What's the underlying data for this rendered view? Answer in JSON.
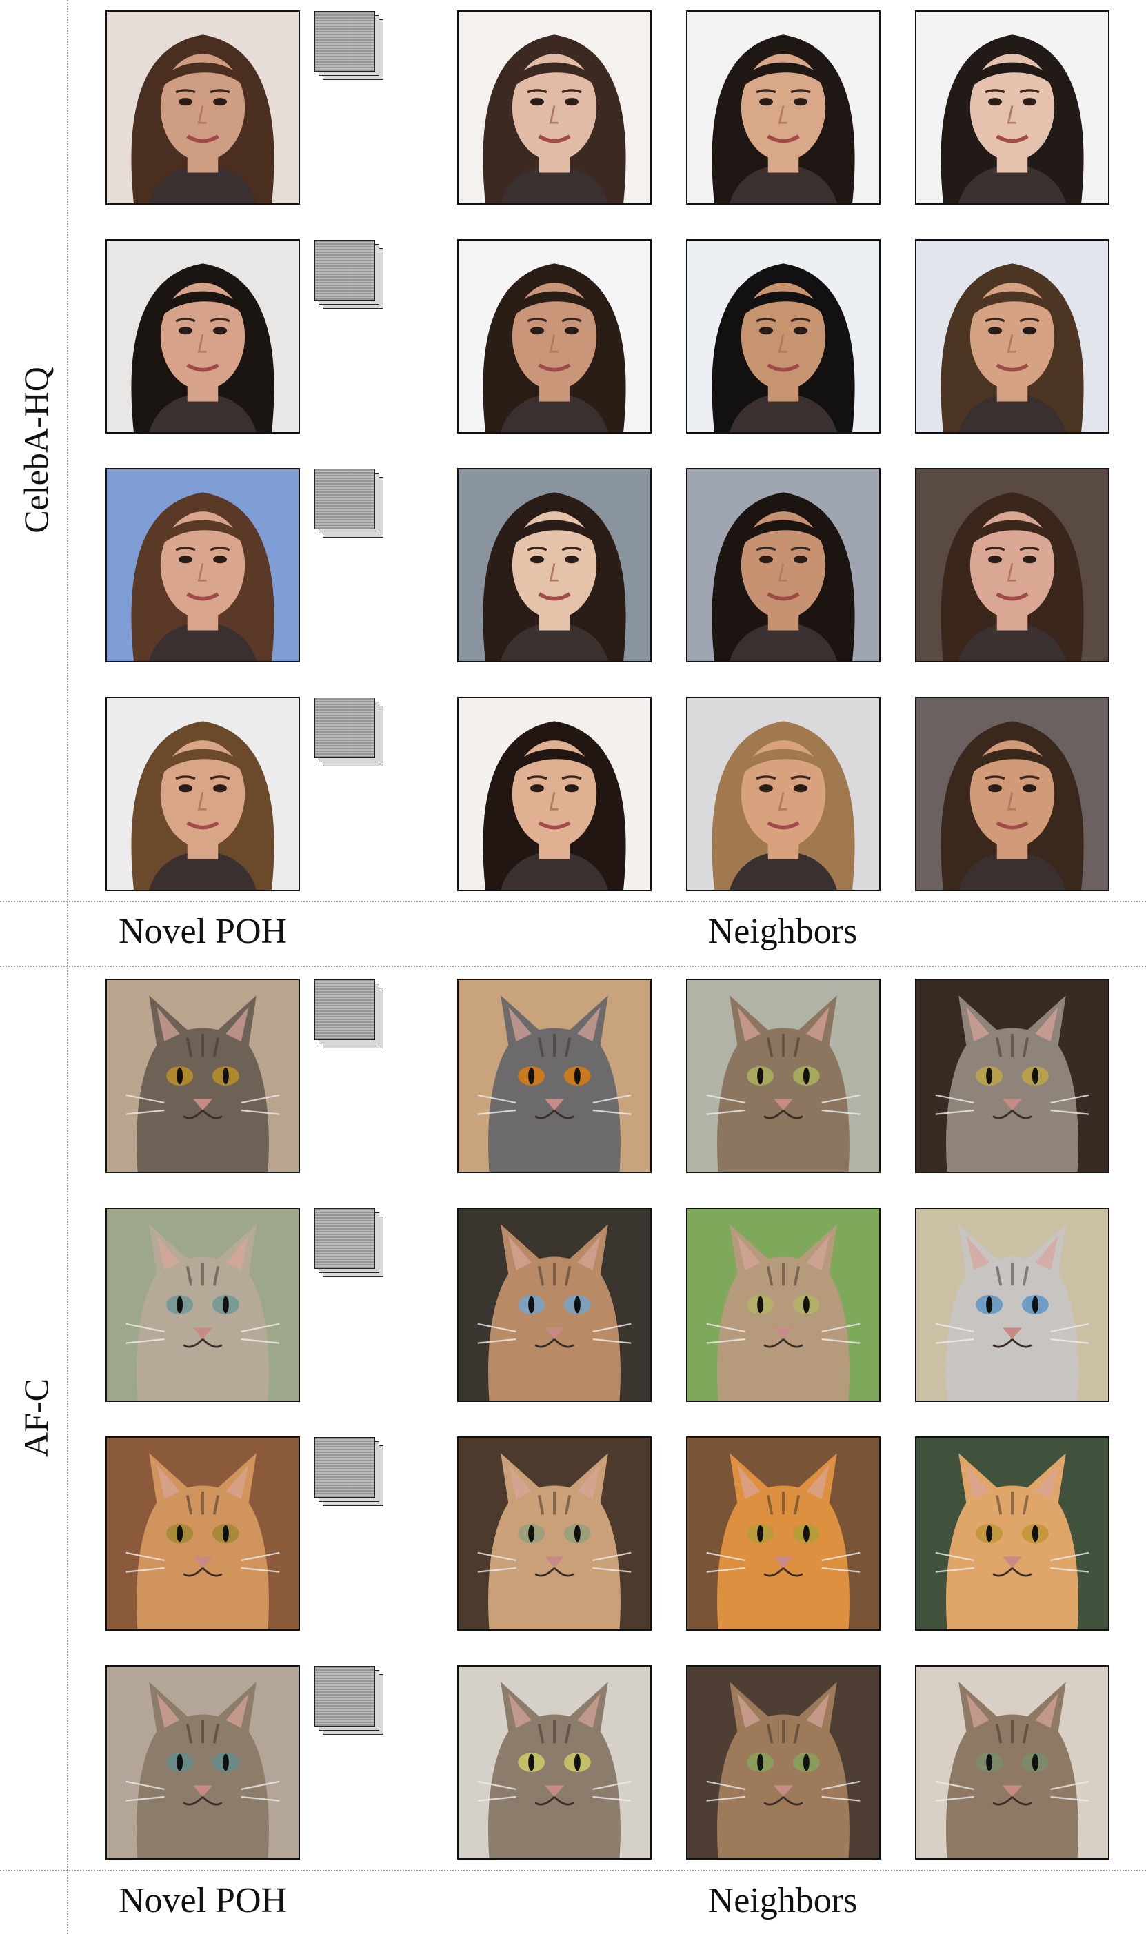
{
  "sections": [
    {
      "label": "CelebA-HQ",
      "kind": "face",
      "captions": {
        "novel": "Novel POH",
        "neighbors": "Neighbors"
      },
      "rows": [
        {
          "novel": {
            "bg": "#e6ddd8",
            "skin": "#cf9d82",
            "hair": "#4a2e20"
          },
          "neighbors": [
            {
              "bg": "#f4f1ee",
              "skin": "#e2bba6",
              "hair": "#3c2a22"
            },
            {
              "bg": "#f2f2f2",
              "skin": "#d8a888",
              "hair": "#1e1714"
            },
            {
              "bg": "#f3f3f3",
              "skin": "#e5c2ae",
              "hair": "#221a16"
            }
          ]
        },
        {
          "novel": {
            "bg": "#e9e6e6",
            "skin": "#d6a38a",
            "hair": "#1b1512"
          },
          "neighbors": [
            {
              "bg": "#f5f5f5",
              "skin": "#c99679",
              "hair": "#2a1d16"
            },
            {
              "bg": "#eceff4",
              "skin": "#c79470",
              "hair": "#121010"
            },
            {
              "bg": "#e2e6ec",
              "skin": "#d5a283",
              "hair": "#4c3523"
            }
          ]
        },
        {
          "novel": {
            "bg": "#7f9ed6",
            "skin": "#d9a68d",
            "hair": "#5a3a27"
          },
          "neighbors": [
            {
              "bg": "#8a949e",
              "skin": "#e5c2aa",
              "hair": "#2a1c16"
            },
            {
              "bg": "#9fa6b2",
              "skin": "#c69272",
              "hair": "#1b1411"
            },
            {
              "bg": "#5a4a44",
              "skin": "#dba795",
              "hair": "#3b261c"
            }
          ]
        },
        {
          "novel": {
            "bg": "#ececec",
            "skin": "#d8a587",
            "hair": "#6a4a2a"
          },
          "neighbors": [
            {
              "bg": "#f3f0ee",
              "skin": "#e0b092",
              "hair": "#211612"
            },
            {
              "bg": "#dadadc",
              "skin": "#d9a27f",
              "hair": "#a07a4e"
            },
            {
              "bg": "#6b6160",
              "skin": "#d19a78",
              "hair": "#3a281c"
            }
          ]
        }
      ]
    },
    {
      "label": "AF-C",
      "kind": "cat",
      "captions": {
        "novel": "Novel POH",
        "neighbors": "Neighbors"
      },
      "rows": [
        {
          "novel": {
            "bg": "#b9a48d",
            "fur": "#6e6257",
            "eye": "#b0892e"
          },
          "neighbors": [
            {
              "bg": "#c9a37b",
              "fur": "#6d6a6b",
              "eye": "#c87a1c"
            },
            {
              "bg": "#b1b3a6",
              "fur": "#8c7660",
              "eye": "#a6a85c"
            },
            {
              "bg": "#3a2a24",
              "fur": "#8f847a",
              "eye": "#b7a04c"
            }
          ]
        },
        {
          "novel": {
            "bg": "#9da88a",
            "fur": "#b5aa98",
            "eye": "#7a9a98"
          },
          "neighbors": [
            {
              "bg": "#3b3530",
              "fur": "#b88a66",
              "eye": "#7fa0bb"
            },
            {
              "bg": "#7ea85a",
              "fur": "#b59a7c",
              "eye": "#b4b06a"
            },
            {
              "bg": "#cbbfa4",
              "fur": "#c8c4c2",
              "eye": "#6d9cc4"
            }
          ]
        },
        {
          "novel": {
            "bg": "#8a5a3a",
            "fur": "#d1945c",
            "eye": "#a88a3a"
          },
          "neighbors": [
            {
              "bg": "#4c3a2c",
              "fur": "#c9a078",
              "eye": "#9aa07a"
            },
            {
              "bg": "#7a5436",
              "fur": "#dc9040",
              "eye": "#b89c3a"
            },
            {
              "bg": "#41523c",
              "fur": "#e0a568",
              "eye": "#c4983c"
            }
          ]
        },
        {
          "novel": {
            "bg": "#b3a597",
            "fur": "#8c7c6a",
            "eye": "#6a8a8a"
          },
          "neighbors": [
            {
              "bg": "#d5d1c9",
              "fur": "#8b7c6c",
              "eye": "#c4c06a"
            },
            {
              "bg": "#4e3e34",
              "fur": "#9c7a5a",
              "eye": "#8a9c5a"
            },
            {
              "bg": "#d8d0c4",
              "fur": "#8e7a64",
              "eye": "#7c8c6a"
            }
          ]
        }
      ]
    }
  ]
}
